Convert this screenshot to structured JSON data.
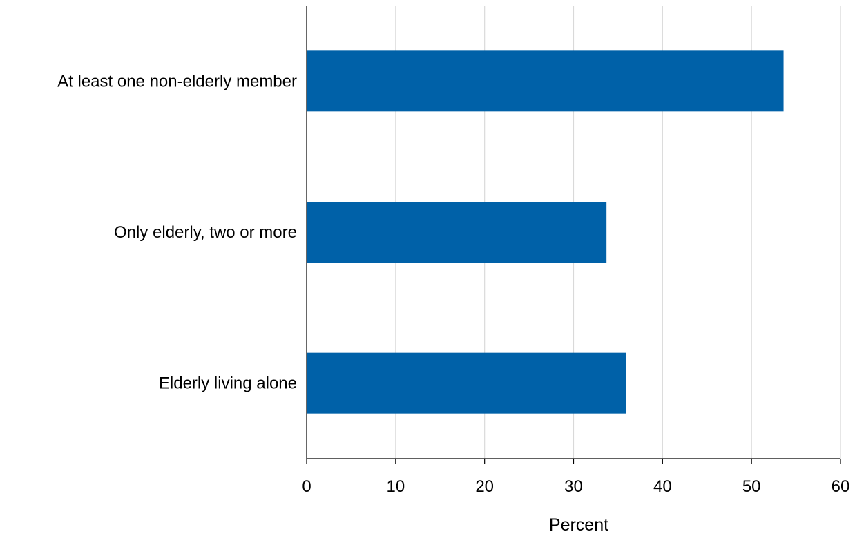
{
  "chart_data": {
    "type": "bar",
    "orientation": "horizontal",
    "categories": [
      "At least one non-elderly member",
      "Only elderly, two or more",
      "Elderly living alone"
    ],
    "values": [
      53.6,
      33.7,
      35.9
    ],
    "xlabel": "Percent",
    "ylabel": "",
    "xlim": [
      0,
      60
    ],
    "xticks": [
      "0",
      "10",
      "20",
      "30",
      "40",
      "50",
      "60"
    ],
    "grid": "vertical",
    "legend": "none"
  },
  "colors": {
    "bar": "#0061a8",
    "grid": "#d9d9d9",
    "axis": "#000000"
  }
}
